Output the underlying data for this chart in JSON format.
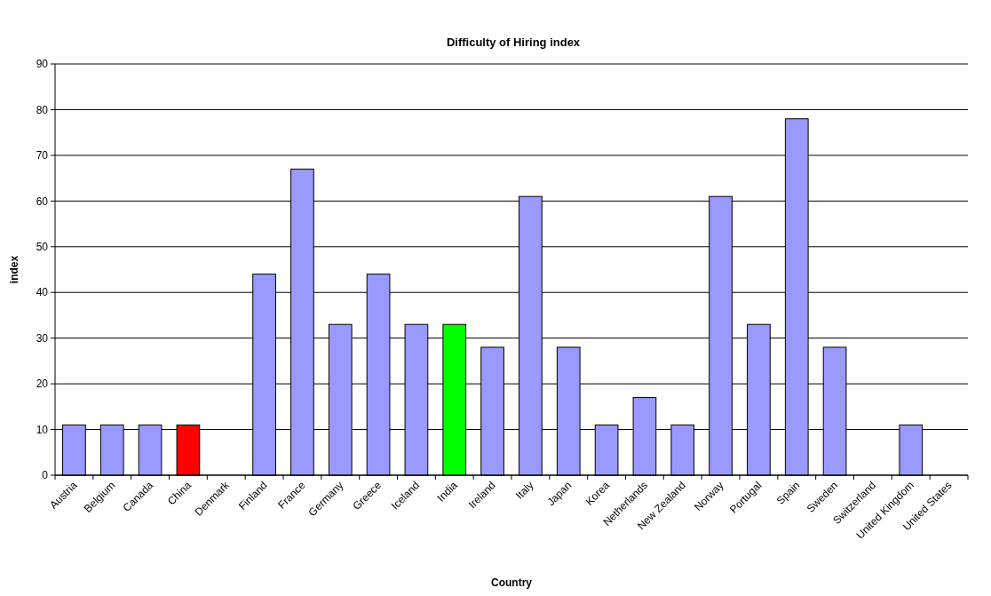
{
  "chart_data": {
    "type": "bar",
    "title": "Difficulty of Hiring index",
    "xlabel": "Country",
    "ylabel": "index",
    "categories": [
      "Austria",
      "Belgium",
      "Canada",
      "China",
      "Denmark",
      "Finland",
      "France",
      "Germany",
      "Greece",
      "Iceland",
      "India",
      "Ireland",
      "Italy",
      "Japan",
      "Korea",
      "Netherlands",
      "New Zealand",
      "Norway",
      "Portugal",
      "Spain",
      "Sweden",
      "Switzerland",
      "United Kingdom",
      "United States"
    ],
    "values": [
      11,
      11,
      11,
      11,
      0,
      44,
      67,
      33,
      44,
      33,
      33,
      28,
      61,
      28,
      11,
      17,
      11,
      61,
      33,
      78,
      28,
      0,
      11,
      0
    ],
    "colors": [
      "#9999ff",
      "#9999ff",
      "#9999ff",
      "#ff0000",
      "#9999ff",
      "#9999ff",
      "#9999ff",
      "#9999ff",
      "#9999ff",
      "#9999ff",
      "#00ff00",
      "#9999ff",
      "#9999ff",
      "#9999ff",
      "#9999ff",
      "#9999ff",
      "#9999ff",
      "#9999ff",
      "#9999ff",
      "#9999ff",
      "#9999ff",
      "#9999ff",
      "#9999ff",
      "#9999ff"
    ],
    "ylim": [
      0,
      90
    ],
    "yticks": [
      0,
      10,
      20,
      30,
      40,
      50,
      60,
      70,
      80,
      90
    ],
    "grid": "y"
  }
}
